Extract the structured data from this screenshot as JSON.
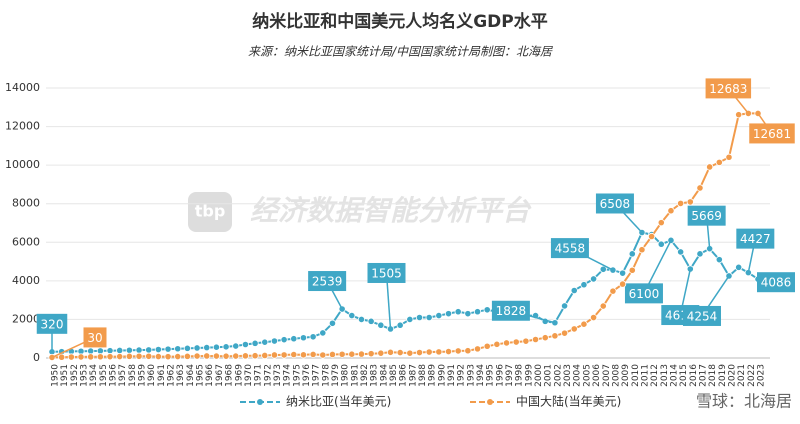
{
  "chart_data": {
    "type": "line",
    "title": "纳米比亚和中国美元人均名义GDP水平",
    "subtitle": "来源：纳米比亚国家统计局/中国国家统计局制图：北海居",
    "watermark": "经济数据智能分析平台",
    "logo": "tbp",
    "footer": "雪球：北海居",
    "categories": [
      "1950",
      "1951",
      "1952",
      "1953",
      "1954",
      "1955",
      "1956",
      "1957",
      "1958",
      "1959",
      "1960",
      "1961",
      "1962",
      "1963",
      "1964",
      "1965",
      "1966",
      "1967",
      "1968",
      "1969",
      "1970",
      "1971",
      "1972",
      "1973",
      "1974",
      "1975",
      "1976",
      "1977",
      "1978",
      "1979",
      "1980",
      "1981",
      "1982",
      "1983",
      "1984",
      "1985",
      "1986",
      "1987",
      "1988",
      "1989",
      "1990",
      "1991",
      "1992",
      "1993",
      "1994",
      "1995",
      "1996",
      "1997",
      "1998",
      "1999",
      "2000",
      "2001",
      "2002",
      "2003",
      "2004",
      "2005",
      "2006",
      "2007",
      "2008",
      "2009",
      "2010",
      "2011",
      "2012",
      "2013",
      "2014",
      "2015",
      "2016",
      "2017",
      "2018",
      "2019",
      "2020",
      "2021",
      "2022",
      "2023"
    ],
    "series": [
      {
        "name": "纳米比亚(当年美元)",
        "color": "#3fa7c6",
        "values": [
          320,
          330,
          340,
          350,
          360,
          370,
          380,
          390,
          400,
          410,
          420,
          440,
          460,
          480,
          500,
          520,
          540,
          560,
          580,
          620,
          700,
          760,
          820,
          880,
          950,
          1000,
          1050,
          1100,
          1300,
          1800,
          2539,
          2200,
          2000,
          1900,
          1700,
          1505,
          1700,
          2000,
          2100,
          2100,
          2200,
          2300,
          2400,
          2300,
          2400,
          2500,
          2400,
          2500,
          2300,
          2200,
          2200,
          1900,
          1828,
          2700,
          3500,
          3800,
          4100,
          4600,
          4558,
          4400,
          5400,
          6508,
          6400,
          5900,
          6100,
          5500,
          4613,
          5400,
          5669,
          5100,
          4254,
          4700,
          4427,
          4086
        ]
      },
      {
        "name": "中国大陆(当年美元)",
        "color": "#f29b4b",
        "values": [
          30,
          40,
          50,
          55,
          60,
          65,
          70,
          75,
          85,
          90,
          90,
          75,
          70,
          75,
          85,
          100,
          105,
          100,
          95,
          100,
          112,
          118,
          131,
          157,
          160,
          178,
          165,
          185,
          156,
          183,
          195,
          197,
          203,
          225,
          250,
          294,
          281,
          252,
          284,
          310,
          318,
          333,
          366,
          377,
          473,
          609,
          709,
          781,
          828,
          873,
          959,
          1053,
          1149,
          1289,
          1509,
          1753,
          2099,
          2694,
          3468,
          3832,
          4550,
          5614,
          6300,
          7020,
          7636,
          8016,
          8094,
          8817,
          9905,
          10144,
          10409,
          12617,
          12683,
          12681
        ]
      }
    ],
    "ylim": [
      0,
      14000
    ],
    "yticks": [
      0,
      2000,
      4000,
      6000,
      8000,
      10000,
      12000,
      14000
    ],
    "grid": true,
    "legend": "bottom"
  }
}
